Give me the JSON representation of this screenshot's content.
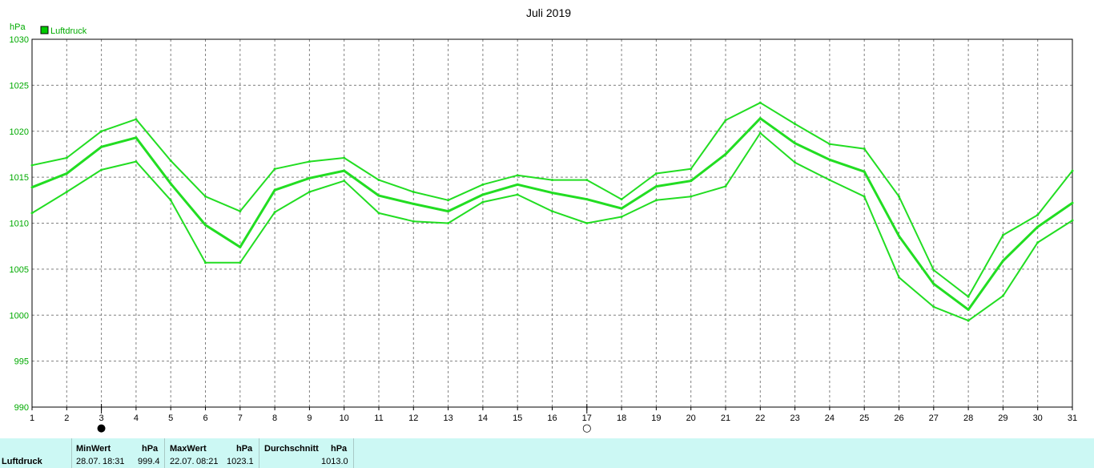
{
  "chart_data": {
    "type": "line",
    "title": "Juli 2019",
    "ylabel": "hPa",
    "legend": {
      "label": "Luftdruck",
      "color": "#00cc00",
      "placement": "top-left"
    },
    "ylim": [
      990,
      1030
    ],
    "y_ticks": [
      "990",
      "995",
      "1000",
      "1005",
      "1010",
      "1015",
      "1020",
      "1025",
      "1030"
    ],
    "x_ticks": [
      "1",
      "2",
      "3",
      "4",
      "5",
      "6",
      "7",
      "8",
      "9",
      "10",
      "11",
      "12",
      "13",
      "14",
      "15",
      "16",
      "17",
      "18",
      "19",
      "20",
      "21",
      "22",
      "23",
      "24",
      "25",
      "26",
      "27",
      "28",
      "29",
      "30",
      "31"
    ],
    "grid": true,
    "line_color": "#22dd22",
    "series": [
      {
        "role": "max",
        "values": [
          1016.3,
          1017.1,
          1020.0,
          1021.3,
          1016.8,
          1012.9,
          1011.3,
          1015.9,
          1016.7,
          1017.1,
          1014.7,
          1013.4,
          1012.5,
          1014.2,
          1015.2,
          1014.7,
          1014.7,
          1012.6,
          1015.4,
          1015.9,
          1021.2,
          1023.1,
          1020.8,
          1018.6,
          1018.1,
          1012.9,
          1004.9,
          1002.0,
          1008.7,
          1010.9,
          1015.7
        ]
      },
      {
        "role": "avg",
        "values": [
          1013.9,
          1015.4,
          1018.3,
          1019.3,
          1014.3,
          1009.8,
          1007.4,
          1013.6,
          1014.9,
          1015.7,
          1013.0,
          1012.1,
          1011.3,
          1013.1,
          1014.2,
          1013.3,
          1012.6,
          1011.6,
          1014.0,
          1014.6,
          1017.5,
          1021.4,
          1018.7,
          1016.9,
          1015.6,
          1008.6,
          1003.4,
          1000.6,
          1005.9,
          1009.6,
          1012.2
        ]
      },
      {
        "role": "min",
        "values": [
          1011.1,
          1013.4,
          1015.8,
          1016.7,
          1012.5,
          1005.7,
          1005.7,
          1011.2,
          1013.4,
          1014.6,
          1011.1,
          1010.2,
          1010.0,
          1012.3,
          1013.1,
          1011.3,
          1010.0,
          1010.7,
          1012.5,
          1012.9,
          1014.0,
          1019.8,
          1016.6,
          1014.7,
          1012.9,
          1004.1,
          1000.9,
          999.4,
          1002.1,
          1007.9,
          1010.3
        ]
      }
    ],
    "markers": [
      {
        "day": 3,
        "symbol": "●"
      },
      {
        "day": 17,
        "symbol": "○"
      }
    ]
  },
  "footer": {
    "row_label": "Luftdruck",
    "min_header": "MinWert",
    "min_unit": "hPa",
    "min_date": "28.07.",
    "min_time": "18:31",
    "min_value": "999.4",
    "max_header": "MaxWert",
    "max_unit": "hPa",
    "max_date": "22.07.",
    "max_time": "08:21",
    "max_value": "1023.1",
    "avg_header": "Durchschnitt",
    "avg_unit": "hPa",
    "avg_value": "1013.0"
  }
}
